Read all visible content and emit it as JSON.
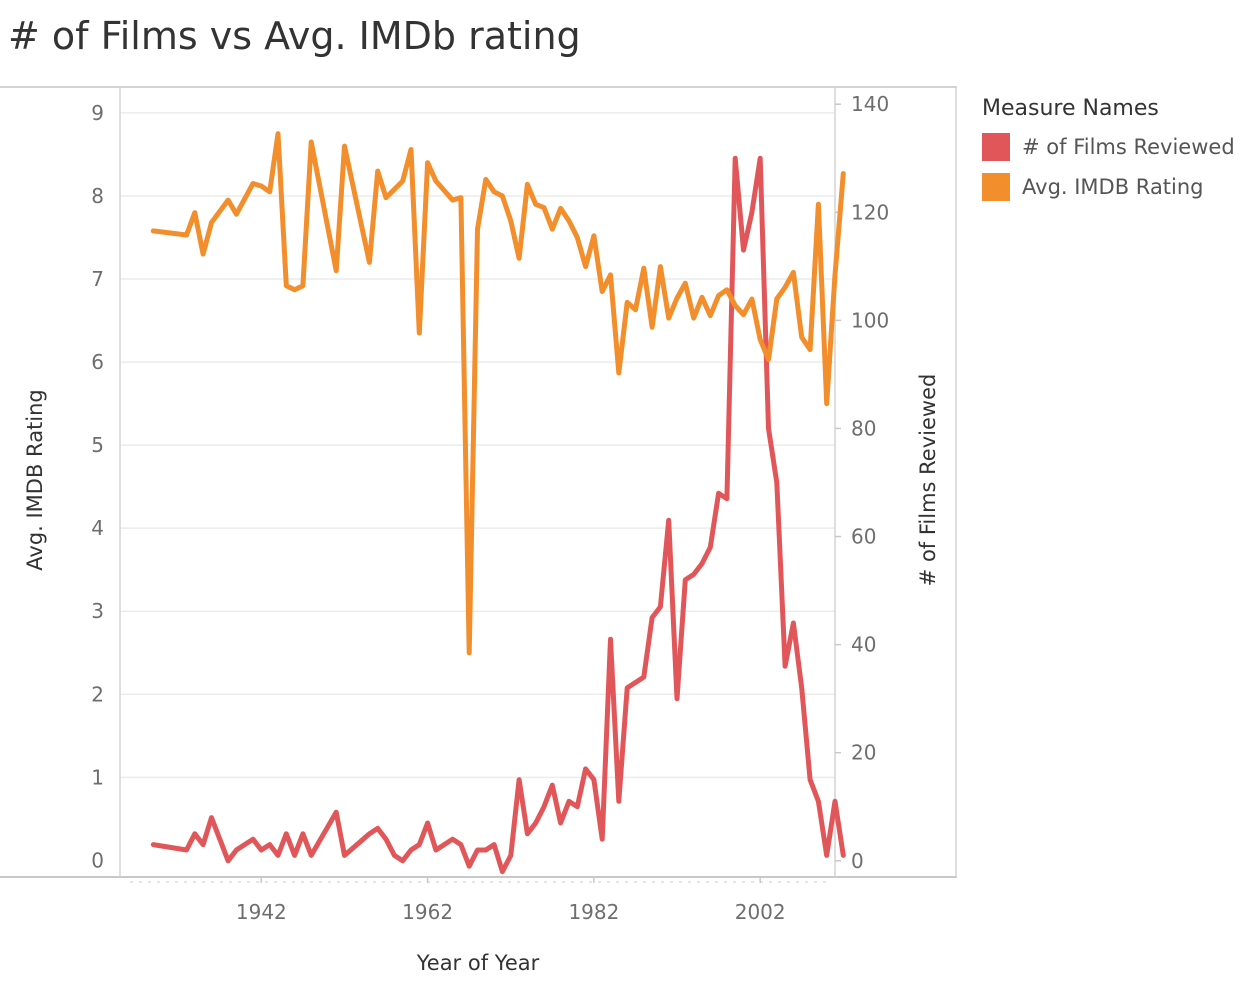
{
  "title": "# of Films vs Avg. IMDb rating",
  "legend": {
    "title": "Measure Names",
    "items": [
      {
        "label": "# of Films Reviewed",
        "color": "#e15759"
      },
      {
        "label": "Avg. IMDB Rating",
        "color": "#f28e2b"
      }
    ]
  },
  "chart_data": {
    "type": "line",
    "xlabel": "Year of Year",
    "ylabel_left": "Avg. IMDB Rating",
    "ylabel_right": "# of Films Reviewed",
    "xlim": [
      1925,
      2011
    ],
    "ylim_left": [
      -0.2,
      9.3
    ],
    "ylim_right": [
      -3,
      143
    ],
    "xticks": [
      1942,
      1962,
      1982,
      2002
    ],
    "yticks_left": [
      0,
      1,
      2,
      3,
      4,
      5,
      6,
      7,
      8,
      9
    ],
    "yticks_right": [
      0,
      20,
      40,
      60,
      80,
      100,
      120,
      140
    ],
    "grid": true,
    "legend_position": "right",
    "series": [
      {
        "name": "# of Films Reviewed",
        "axis": "right",
        "color": "#e15759",
        "points": [
          [
            1929,
            3
          ],
          [
            1933,
            2
          ],
          [
            1934,
            5
          ],
          [
            1935,
            3
          ],
          [
            1936,
            8
          ],
          [
            1937,
            4
          ],
          [
            1938,
            0
          ],
          [
            1939,
            2
          ],
          [
            1941,
            4
          ],
          [
            1942,
            2
          ],
          [
            1943,
            3
          ],
          [
            1944,
            1
          ],
          [
            1945,
            5
          ],
          [
            1946,
            1
          ],
          [
            1947,
            5
          ],
          [
            1948,
            1
          ],
          [
            1951,
            9
          ],
          [
            1952,
            1
          ],
          [
            1955,
            5
          ],
          [
            1956,
            6
          ],
          [
            1957,
            4
          ],
          [
            1958,
            1
          ],
          [
            1959,
            0
          ],
          [
            1960,
            2
          ],
          [
            1961,
            3
          ],
          [
            1962,
            7
          ],
          [
            1963,
            2
          ],
          [
            1965,
            4
          ],
          [
            1966,
            3
          ],
          [
            1967,
            -1
          ],
          [
            1968,
            2
          ],
          [
            1969,
            2
          ],
          [
            1970,
            3
          ],
          [
            1971,
            -2
          ],
          [
            1972,
            1
          ],
          [
            1973,
            15
          ],
          [
            1974,
            5
          ],
          [
            1975,
            7
          ],
          [
            1976,
            10
          ],
          [
            1977,
            14
          ],
          [
            1978,
            7
          ],
          [
            1979,
            11
          ],
          [
            1980,
            10
          ],
          [
            1981,
            17
          ],
          [
            1982,
            15
          ],
          [
            1983,
            4
          ],
          [
            1984,
            41
          ],
          [
            1985,
            11
          ],
          [
            1986,
            32
          ],
          [
            1987,
            33
          ],
          [
            1988,
            34
          ],
          [
            1989,
            45
          ],
          [
            1990,
            47
          ],
          [
            1991,
            63
          ],
          [
            1992,
            30
          ],
          [
            1993,
            52
          ],
          [
            1994,
            53
          ],
          [
            1995,
            55
          ],
          [
            1996,
            58
          ],
          [
            1997,
            68
          ],
          [
            1998,
            67
          ],
          [
            1999,
            130
          ],
          [
            2000,
            113
          ],
          [
            2001,
            120
          ],
          [
            2002,
            130
          ],
          [
            2003,
            80
          ],
          [
            2004,
            70
          ],
          [
            2005,
            36
          ],
          [
            2006,
            44
          ],
          [
            2007,
            32
          ],
          [
            2008,
            15
          ],
          [
            2009,
            11
          ],
          [
            2010,
            1
          ],
          [
            2011,
            11
          ],
          [
            2012,
            1
          ]
        ]
      },
      {
        "name": "Avg. IMDB Rating",
        "axis": "left",
        "color": "#f28e2b",
        "points": [
          [
            1929,
            7.58
          ],
          [
            1933,
            7.53
          ],
          [
            1934,
            7.8
          ],
          [
            1935,
            7.3
          ],
          [
            1936,
            7.68
          ],
          [
            1938,
            7.95
          ],
          [
            1939,
            7.78
          ],
          [
            1941,
            8.15
          ],
          [
            1942,
            8.12
          ],
          [
            1943,
            8.05
          ],
          [
            1944,
            8.75
          ],
          [
            1945,
            6.92
          ],
          [
            1946,
            6.87
          ],
          [
            1947,
            6.92
          ],
          [
            1948,
            8.65
          ],
          [
            1951,
            7.1
          ],
          [
            1952,
            8.6
          ],
          [
            1955,
            7.2
          ],
          [
            1956,
            8.3
          ],
          [
            1957,
            7.98
          ],
          [
            1958,
            8.08
          ],
          [
            1959,
            8.18
          ],
          [
            1960,
            8.56
          ],
          [
            1961,
            6.35
          ],
          [
            1962,
            8.4
          ],
          [
            1963,
            8.18
          ],
          [
            1965,
            7.95
          ],
          [
            1966,
            7.98
          ],
          [
            1967,
            2.5
          ],
          [
            1968,
            7.6
          ],
          [
            1969,
            8.2
          ],
          [
            1970,
            8.05
          ],
          [
            1971,
            8.0
          ],
          [
            1972,
            7.7
          ],
          [
            1973,
            7.25
          ],
          [
            1974,
            8.14
          ],
          [
            1975,
            7.9
          ],
          [
            1976,
            7.86
          ],
          [
            1977,
            7.6
          ],
          [
            1978,
            7.85
          ],
          [
            1979,
            7.7
          ],
          [
            1980,
            7.5
          ],
          [
            1981,
            7.15
          ],
          [
            1982,
            7.52
          ],
          [
            1983,
            6.85
          ],
          [
            1984,
            7.05
          ],
          [
            1985,
            5.87
          ],
          [
            1986,
            6.72
          ],
          [
            1987,
            6.63
          ],
          [
            1988,
            7.13
          ],
          [
            1989,
            6.42
          ],
          [
            1990,
            7.15
          ],
          [
            1991,
            6.53
          ],
          [
            1992,
            6.77
          ],
          [
            1993,
            6.95
          ],
          [
            1994,
            6.53
          ],
          [
            1995,
            6.78
          ],
          [
            1996,
            6.56
          ],
          [
            1997,
            6.8
          ],
          [
            1998,
            6.87
          ],
          [
            1999,
            6.68
          ],
          [
            2000,
            6.57
          ],
          [
            2001,
            6.76
          ],
          [
            2002,
            6.27
          ],
          [
            2003,
            6.03
          ],
          [
            2004,
            6.76
          ],
          [
            2005,
            6.9
          ],
          [
            2006,
            7.08
          ],
          [
            2007,
            6.3
          ],
          [
            2008,
            6.15
          ],
          [
            2009,
            7.9
          ],
          [
            2010,
            5.5
          ],
          [
            2011,
            7.05
          ],
          [
            2012,
            8.27
          ]
        ]
      }
    ]
  }
}
